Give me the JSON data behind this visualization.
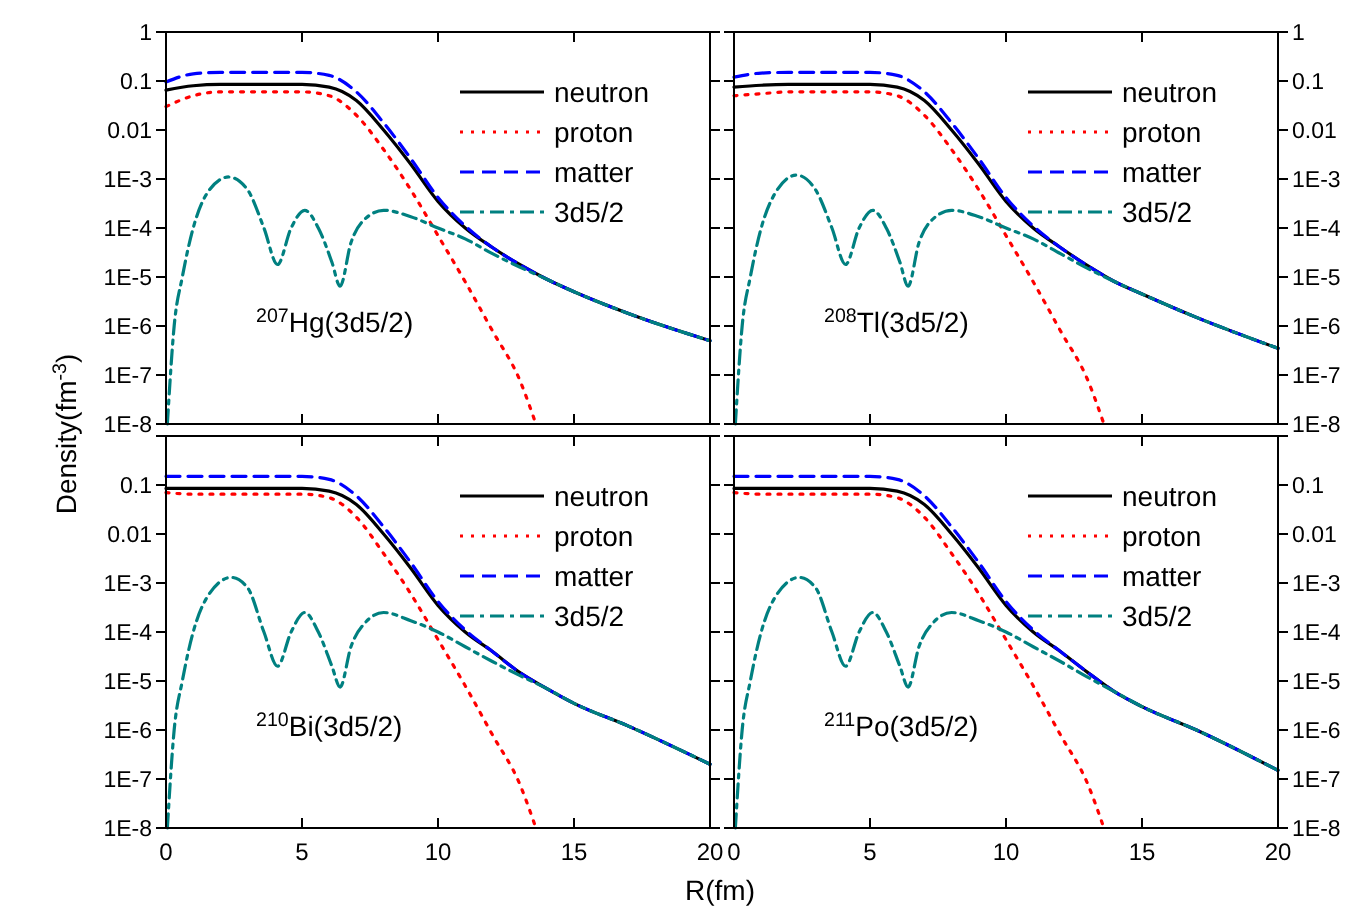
{
  "chart_data": [
    {
      "type": "line",
      "ylabel": "Density(fm$^{-3}$)",
      "annotations": [
        "$^{207}$Hg(3d5/2)"
      ],
      "log": "y",
      "legend": "top right",
      "tick_labels": "y",
      "xlim": [
        0,
        20
      ],
      "xticks": [
        0,
        5,
        10,
        15,
        20
      ],
      "ylim": [
        1e-08,
        1
      ],
      "yticks": [
        {
          "value": 1e-08,
          "label": "1E-8"
        },
        {
          "value": 1e-07,
          "label": "1E-7"
        },
        {
          "value": 1e-06,
          "label": "1E-6"
        },
        {
          "value": 1e-05,
          "label": "1E-5"
        },
        {
          "value": 0.0001,
          "label": "1E-4"
        },
        {
          "value": 0.001,
          "label": "1E-3"
        },
        0.01,
        0.1,
        1
      ],
      "series": [
        {
          "name": "neutron",
          "color": "#000000",
          "line_style": "solid",
          "x": [
            0,
            1,
            2,
            3,
            4,
            5,
            6,
            7,
            8,
            9,
            10,
            11,
            12,
            13,
            14,
            15,
            17,
            20
          ],
          "values": [
            0.065,
            0.08,
            0.085,
            0.085,
            0.085,
            0.085,
            0.075,
            0.04,
            0.01,
            0.002,
            0.00035,
            0.0001,
            4e-05,
            1.8e-05,
            9e-06,
            5e-06,
            1.8e-06,
            5e-07
          ]
        },
        {
          "name": "proton",
          "color": "#ff0000",
          "line_style": "dotted",
          "x": [
            0,
            1,
            2,
            3,
            4,
            5,
            6,
            7,
            8,
            9,
            10,
            11,
            12,
            13,
            13.6
          ],
          "values": [
            0.03,
            0.05,
            0.06,
            0.06,
            0.06,
            0.06,
            0.05,
            0.02,
            0.004,
            0.0006,
            7e-05,
            8e-06,
            8e-07,
            8e-08,
            1e-08
          ]
        },
        {
          "name": "matter",
          "color": "#0000ff",
          "line_style": "dashed",
          "x": [
            0,
            1,
            2,
            3,
            4,
            5,
            6,
            7,
            8,
            9,
            10,
            11,
            12,
            13,
            14,
            15,
            17,
            20
          ],
          "values": [
            0.095,
            0.14,
            0.15,
            0.15,
            0.15,
            0.15,
            0.13,
            0.06,
            0.014,
            0.0026,
            0.00042,
            0.00011,
            4e-05,
            1.8e-05,
            9e-06,
            5e-06,
            1.8e-06,
            5e-07
          ]
        },
        {
          "name": "3d5/2",
          "color": "#008080",
          "line_style": "dashdot",
          "x": [
            0.05,
            0.3,
            0.6,
            1,
            1.5,
            2.3,
            3,
            3.6,
            4.1,
            4.6,
            5.1,
            5.6,
            6.1,
            6.4,
            6.8,
            7.3,
            8,
            9,
            10,
            11,
            12,
            13,
            14,
            15,
            17,
            20
          ],
          "values": [
            1e-08,
            1e-06,
            1e-05,
            0.0001,
            0.0005,
            0.0011,
            0.0006,
            0.0001,
            1.8e-05,
            0.0001,
            0.00023,
            0.0001,
            2e-05,
            6.5e-06,
            5e-05,
            0.00015,
            0.00023,
            0.00017,
            0.0001,
            6e-05,
            3e-05,
            1.6e-05,
            9e-06,
            5e-06,
            1.8e-06,
            5e-07
          ]
        }
      ]
    },
    {
      "type": "line",
      "annotations": [
        "$^{208}$Tl(3d5/2)"
      ],
      "log": "y",
      "legend": "top right",
      "tick_labels": "y",
      "xlim": [
        0,
        20
      ],
      "xticks": [
        0,
        5,
        10,
        15,
        20
      ],
      "ylim": [
        1e-08,
        1
      ],
      "yticks": [
        {
          "value": 1e-08,
          "label": "1E-8"
        },
        {
          "value": 1e-07,
          "label": "1E-7"
        },
        {
          "value": 1e-06,
          "label": "1E-6"
        },
        {
          "value": 1e-05,
          "label": "1E-5"
        },
        {
          "value": 0.0001,
          "label": "1E-4"
        },
        {
          "value": 0.001,
          "label": "1E-3"
        },
        0.01,
        0.1,
        1
      ],
      "series": [
        {
          "name": "neutron",
          "color": "#000000",
          "line_style": "solid",
          "x": [
            0,
            1,
            2,
            3,
            4,
            5,
            6,
            7,
            8,
            9,
            10,
            11,
            12,
            13,
            14,
            15,
            17,
            20
          ],
          "values": [
            0.075,
            0.082,
            0.085,
            0.085,
            0.085,
            0.085,
            0.075,
            0.04,
            0.01,
            0.002,
            0.00035,
            0.0001,
            4e-05,
            1.7e-05,
            8e-06,
            4.5e-06,
            1.5e-06,
            3.5e-07
          ]
        },
        {
          "name": "proton",
          "color": "#ff0000",
          "line_style": "dotted",
          "x": [
            0,
            1,
            2,
            3,
            4,
            5,
            6,
            7,
            8,
            9,
            10,
            11,
            12,
            13,
            13.6
          ],
          "values": [
            0.05,
            0.055,
            0.06,
            0.06,
            0.06,
            0.06,
            0.05,
            0.02,
            0.004,
            0.0006,
            7e-05,
            8e-06,
            8e-07,
            8e-08,
            1e-08
          ]
        },
        {
          "name": "matter",
          "color": "#0000ff",
          "line_style": "dashed",
          "x": [
            0,
            1,
            2,
            3,
            4,
            5,
            6,
            7,
            8,
            9,
            10,
            11,
            12,
            13,
            14,
            15,
            17,
            20
          ],
          "values": [
            0.12,
            0.145,
            0.15,
            0.15,
            0.15,
            0.15,
            0.13,
            0.06,
            0.014,
            0.0026,
            0.00042,
            0.00011,
            4e-05,
            1.7e-05,
            8e-06,
            4.5e-06,
            1.5e-06,
            3.5e-07
          ]
        },
        {
          "name": "3d5/2",
          "color": "#008080",
          "line_style": "dashdot",
          "x": [
            0.05,
            0.3,
            0.6,
            1,
            1.5,
            2.3,
            3,
            3.6,
            4.1,
            4.6,
            5.1,
            5.6,
            6.1,
            6.4,
            6.8,
            7.3,
            8,
            9,
            10,
            11,
            12,
            13,
            14,
            15,
            17,
            20
          ],
          "values": [
            1e-08,
            1e-06,
            1e-05,
            0.0001,
            0.0005,
            0.0012,
            0.0006,
            0.0001,
            1.8e-05,
            0.0001,
            0.00023,
            0.0001,
            2e-05,
            6.5e-06,
            5e-05,
            0.00015,
            0.00023,
            0.00017,
            0.0001,
            6e-05,
            3e-05,
            1.5e-05,
            8e-06,
            4.5e-06,
            1.5e-06,
            3.5e-07
          ]
        }
      ]
    },
    {
      "type": "line",
      "xlabel": "R(fm)",
      "annotations": [
        "$^{210}$Bi(3d5/2)"
      ],
      "log": "y",
      "legend": "top right",
      "xlim": [
        0,
        20
      ],
      "xticks": [
        0,
        5,
        10,
        15,
        20
      ],
      "ylim": [
        1e-08,
        1
      ],
      "yticks": [
        {
          "value": 1e-08,
          "label": "1E-8"
        },
        {
          "value": 1e-07,
          "label": "1E-7"
        },
        {
          "value": 1e-06,
          "label": "1E-6"
        },
        {
          "value": 1e-05,
          "label": "1E-5"
        },
        {
          "value": 0.0001,
          "label": "1E-4"
        },
        {
          "value": 0.001,
          "label": "1E-3"
        },
        0.01,
        0.1,
        {
          "value": 1,
          "label": null
        }
      ],
      "series": [
        {
          "name": "neutron",
          "color": "#000000",
          "line_style": "solid",
          "x": [
            0,
            1,
            2,
            3,
            4,
            5,
            6,
            7,
            8,
            9,
            10,
            11,
            12,
            13,
            14,
            15,
            17,
            20
          ],
          "values": [
            0.085,
            0.085,
            0.085,
            0.085,
            0.085,
            0.085,
            0.075,
            0.04,
            0.01,
            0.002,
            0.00035,
            0.0001,
            4e-05,
            1.5e-05,
            7e-06,
            3.5e-06,
            1.2e-06,
            2e-07
          ]
        },
        {
          "name": "proton",
          "color": "#ff0000",
          "line_style": "dotted",
          "x": [
            0,
            1,
            2,
            3,
            4,
            5,
            6,
            7,
            8,
            9,
            10,
            11,
            12,
            13,
            13.6
          ],
          "values": [
            0.07,
            0.065,
            0.065,
            0.065,
            0.065,
            0.065,
            0.055,
            0.022,
            0.004,
            0.0006,
            7e-05,
            8e-06,
            8e-07,
            8e-08,
            1e-08
          ]
        },
        {
          "name": "matter",
          "color": "#0000ff",
          "line_style": "dashed",
          "x": [
            0,
            1,
            2,
            3,
            4,
            5,
            6,
            7,
            8,
            9,
            10,
            11,
            12,
            13,
            14,
            15,
            17,
            20
          ],
          "values": [
            0.15,
            0.15,
            0.15,
            0.15,
            0.15,
            0.15,
            0.13,
            0.06,
            0.014,
            0.0026,
            0.00042,
            0.00011,
            4e-05,
            1.5e-05,
            7e-06,
            3.5e-06,
            1.2e-06,
            2e-07
          ]
        },
        {
          "name": "3d5/2",
          "color": "#008080",
          "line_style": "dashdot",
          "x": [
            0.05,
            0.3,
            0.6,
            1,
            1.5,
            2.4,
            3,
            3.6,
            4.1,
            4.6,
            5.1,
            5.6,
            6.1,
            6.4,
            6.8,
            7.3,
            8,
            9,
            10,
            11,
            12,
            13,
            14,
            15,
            17,
            20
          ],
          "values": [
            1e-08,
            1e-06,
            1e-05,
            0.0001,
            0.0005,
            0.0013,
            0.0008,
            0.0001,
            2e-05,
            0.0001,
            0.00025,
            0.0001,
            2e-05,
            7.5e-06,
            5e-05,
            0.00015,
            0.00025,
            0.00017,
            0.0001,
            5e-05,
            2.5e-05,
            1.3e-05,
            7e-06,
            3.5e-06,
            1.2e-06,
            2e-07
          ]
        }
      ]
    },
    {
      "type": "line",
      "annotations": [
        "$^{211}$Po(3d5/2)"
      ],
      "log": "y",
      "legend": "top right",
      "xlim": [
        0,
        20
      ],
      "xticks": [
        0,
        5,
        10,
        15,
        20
      ],
      "ylim": [
        1e-08,
        1
      ],
      "yticks": [
        {
          "value": 1e-08,
          "label": "1E-8"
        },
        {
          "value": 1e-07,
          "label": "1E-7"
        },
        {
          "value": 1e-06,
          "label": "1E-6"
        },
        {
          "value": 1e-05,
          "label": "1E-5"
        },
        {
          "value": 0.0001,
          "label": "1E-4"
        },
        {
          "value": 0.001,
          "label": "1E-3"
        },
        0.01,
        0.1,
        {
          "value": 1,
          "label": null
        }
      ],
      "series": [
        {
          "name": "neutron",
          "color": "#000000",
          "line_style": "solid",
          "x": [
            0,
            1,
            2,
            3,
            4,
            5,
            6,
            7,
            8,
            9,
            10,
            11,
            12,
            13,
            14,
            15,
            17,
            20
          ],
          "values": [
            0.085,
            0.085,
            0.085,
            0.085,
            0.085,
            0.085,
            0.075,
            0.04,
            0.01,
            0.002,
            0.00035,
            0.0001,
            4e-05,
            1.5e-05,
            6e-06,
            3e-06,
            1e-06,
            1.5e-07
          ]
        },
        {
          "name": "proton",
          "color": "#ff0000",
          "line_style": "dotted",
          "x": [
            0,
            1,
            2,
            3,
            4,
            5,
            6,
            7,
            8,
            9,
            10,
            11,
            12,
            13,
            13.6
          ],
          "values": [
            0.07,
            0.065,
            0.065,
            0.065,
            0.065,
            0.065,
            0.055,
            0.022,
            0.004,
            0.0006,
            7e-05,
            8e-06,
            8e-07,
            8e-08,
            1e-08
          ]
        },
        {
          "name": "matter",
          "color": "#0000ff",
          "line_style": "dashed",
          "x": [
            0,
            1,
            2,
            3,
            4,
            5,
            6,
            7,
            8,
            9,
            10,
            11,
            12,
            13,
            14,
            15,
            17,
            20
          ],
          "values": [
            0.15,
            0.15,
            0.15,
            0.15,
            0.15,
            0.15,
            0.13,
            0.06,
            0.014,
            0.0026,
            0.00042,
            0.00011,
            4e-05,
            1.5e-05,
            6e-06,
            3e-06,
            1e-06,
            1.5e-07
          ]
        },
        {
          "name": "3d5/2",
          "color": "#008080",
          "line_style": "dashdot",
          "x": [
            0.05,
            0.3,
            0.6,
            1,
            1.5,
            2.4,
            3,
            3.6,
            4.1,
            4.6,
            5.1,
            5.6,
            6.1,
            6.4,
            6.8,
            7.3,
            8,
            9,
            10,
            11,
            12,
            13,
            14,
            15,
            17,
            20
          ],
          "values": [
            1e-08,
            1e-06,
            1e-05,
            0.0001,
            0.0005,
            0.0013,
            0.0008,
            0.0001,
            2e-05,
            0.0001,
            0.00025,
            0.0001,
            2e-05,
            7.5e-06,
            5e-05,
            0.00015,
            0.00025,
            0.00017,
            0.0001,
            5e-05,
            2.5e-05,
            1.2e-05,
            6e-06,
            3e-06,
            1e-06,
            1.5e-07
          ]
        }
      ]
    }
  ]
}
